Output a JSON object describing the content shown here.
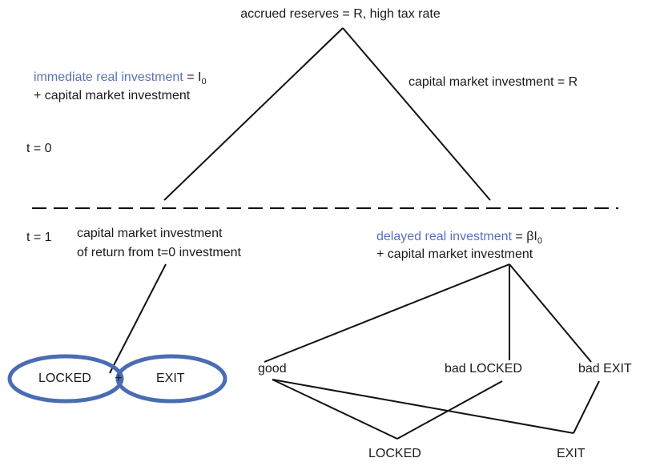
{
  "top": "accrued reserves = R, high tax rate",
  "left_branch": {
    "blue": "immediate real investment",
    "rest": "= I",
    "sub": "0",
    "line2": "+ capital market investment"
  },
  "right_branch": "capital market investment = R",
  "t0": "t = 0",
  "t1": "t = 1",
  "lower_left": {
    "line1": "capital market investment",
    "line2": "of return from t=0 investment"
  },
  "lower_right": {
    "blue": "delayed real investment",
    "rest": "= βI",
    "sub": "0",
    "line2": "+ capital market investment"
  },
  "ellipses": {
    "left": "LOCKED",
    "plus": "+",
    "right": "EXIT"
  },
  "outcomes": {
    "good": "good",
    "bad_locked": "bad LOCKED",
    "bad_exit": "bad EXIT"
  },
  "finals": {
    "locked": "LOCKED",
    "exit": "EXIT"
  }
}
